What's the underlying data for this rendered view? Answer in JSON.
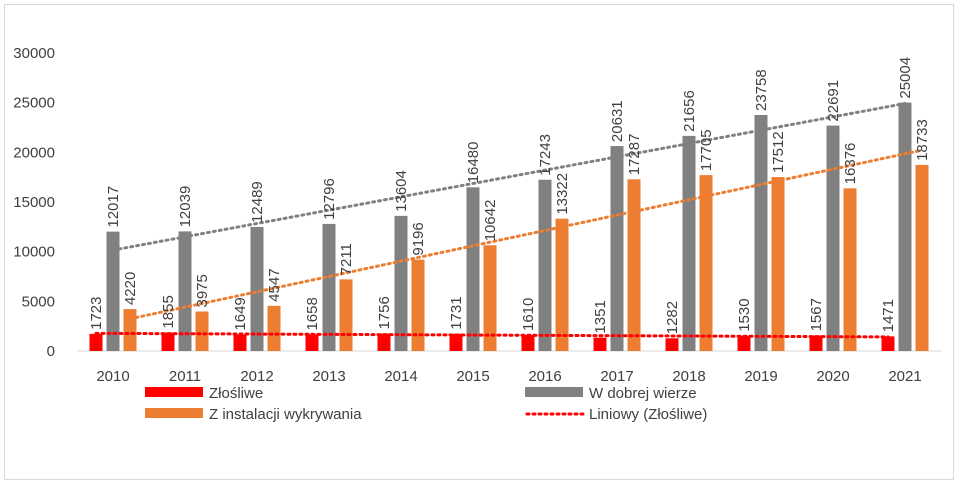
{
  "chart_data": {
    "type": "bar",
    "categories": [
      "2010",
      "2011",
      "2012",
      "2013",
      "2014",
      "2015",
      "2016",
      "2017",
      "2018",
      "2019",
      "2020",
      "2021"
    ],
    "series": [
      {
        "name": "Złośliwe",
        "color": "#ff0000",
        "values": [
          1723,
          1855,
          1649,
          1658,
          1756,
          1731,
          1610,
          1351,
          1282,
          1530,
          1567,
          1471
        ]
      },
      {
        "name": "W dobrej wierze",
        "color": "#808080",
        "values": [
          12017,
          12039,
          12489,
          12796,
          13604,
          16480,
          17243,
          20631,
          21656,
          23758,
          22691,
          25004
        ]
      },
      {
        "name": "Z instalacji wykrywania",
        "color": "#ed7d31",
        "values": [
          4220,
          3975,
          4547,
          7211,
          9196,
          10642,
          13322,
          17287,
          17705,
          17512,
          16376,
          18733
        ]
      }
    ],
    "trendlines": [
      {
        "name": "Liniowy (Złośliwe)",
        "series": "Złośliwe",
        "color": "#ff0000",
        "style": "dotted",
        "in_legend": true
      },
      {
        "series": "W dobrej wierze",
        "color": "#808080",
        "style": "dotted",
        "in_legend": false
      },
      {
        "series": "Z instalacji wykrywania",
        "color": "#ed7d31",
        "style": "dotted",
        "in_legend": false
      }
    ],
    "yticks": [
      "0",
      "5000",
      "10000",
      "15000",
      "20000",
      "25000",
      "30000"
    ],
    "ylim": [
      0,
      30000
    ],
    "grid": false,
    "data_labels": "vertical, above bars",
    "legend": {
      "position": "bottom",
      "items": [
        {
          "label": "Złośliwe",
          "kind": "bar",
          "color": "#ff0000"
        },
        {
          "label": "W dobrej wierze",
          "kind": "bar",
          "color": "#808080"
        },
        {
          "label": "Z instalacji wykrywania",
          "kind": "bar",
          "color": "#ed7d31"
        },
        {
          "label": "Liniowy (Złośliwe)",
          "kind": "dotted-line",
          "color": "#ff0000"
        }
      ]
    }
  }
}
